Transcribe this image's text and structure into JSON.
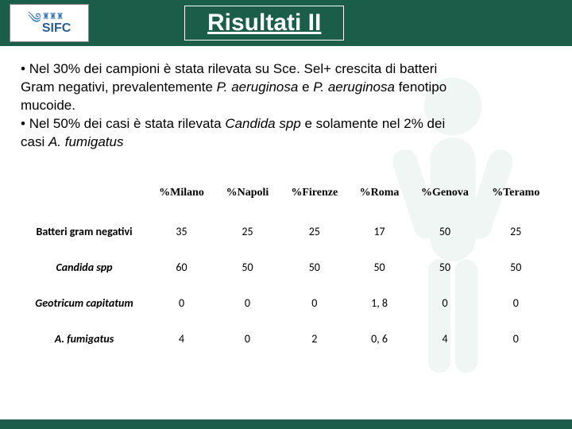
{
  "header": {
    "logo_text": "SIFC",
    "title": "Risultati II"
  },
  "body": {
    "bullet1_a": "Nel 30% dei campioni è stata rilevata su Sce. Sel+ crescita di batteri Gram negativi, prevalentemente ",
    "bullet1_b": "P. aeruginosa",
    "bullet1_c": " e ",
    "bullet1_d": "P. aeruginosa",
    "bullet1_e": " fenotipo mucoide.",
    "bullet2_a": "Nel 50% dei casi è stata rilevata ",
    "bullet2_b": "Candida spp",
    "bullet2_c": " e solamente nel 2% dei casi ",
    "bullet2_d": "A. fumigatus"
  },
  "table": {
    "columns": [
      "%Milano",
      "%Napoli",
      "%Firenze",
      "%Roma",
      "%Genova",
      "%Teramo"
    ],
    "rows": [
      {
        "label": "Batteri gram negativi",
        "italic": false,
        "values": [
          "35",
          "25",
          "25",
          "17",
          "50",
          "25"
        ]
      },
      {
        "label": "Candida spp",
        "italic": true,
        "values": [
          "60",
          "50",
          "50",
          "50",
          "50",
          "50"
        ]
      },
      {
        "label": "Geotricum capitatum",
        "italic": true,
        "values": [
          "0",
          "0",
          "0",
          "1, 8",
          "0",
          "0"
        ]
      },
      {
        "label": "A. fumigatus",
        "italic": true,
        "values": [
          "4",
          "0",
          "2",
          "0, 6",
          "4",
          "0"
        ]
      }
    ]
  },
  "colors": {
    "band": "#1a5e4a",
    "text": "#000000",
    "white": "#ffffff"
  }
}
